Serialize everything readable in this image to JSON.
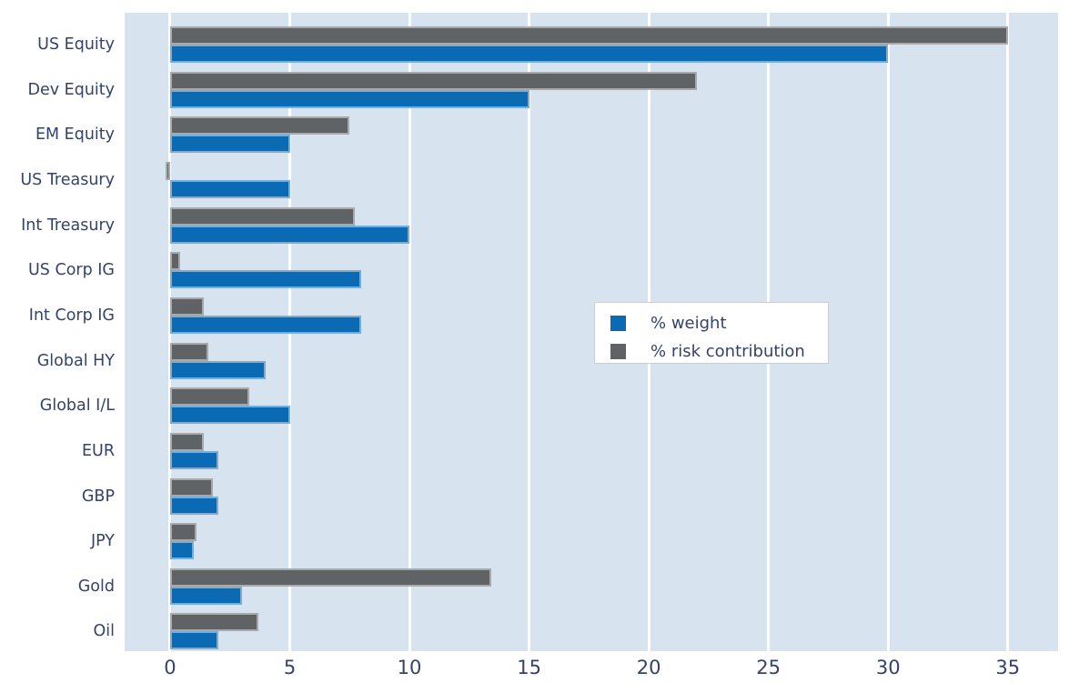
{
  "chart_data": {
    "type": "bar",
    "orientation": "horizontal",
    "title": "",
    "xlabel": "",
    "ylabel": "",
    "categories": [
      "US Equity",
      "Dev Equity",
      "EM Equity",
      "US Treasury",
      "Int Treasury",
      "US Corp IG",
      "Int Corp IG",
      "Global HY",
      "Global I/L",
      "EUR",
      "GBP",
      "JPY",
      "Gold",
      "Oil"
    ],
    "series": [
      {
        "name": "% weight",
        "color": "#0b6ab4",
        "values": [
          30,
          15,
          5,
          5,
          10,
          8,
          8,
          4,
          5,
          2,
          2,
          1,
          3,
          2
        ]
      },
      {
        "name": "% risk contribution",
        "color": "#5f6366",
        "values": [
          35,
          22,
          7.5,
          -0.2,
          7.7,
          0.4,
          1.4,
          1.6,
          3.3,
          1.4,
          1.8,
          1.1,
          13.4,
          3.7
        ]
      }
    ],
    "x_ticks": [
      0,
      5,
      10,
      15,
      20,
      25,
      30,
      35
    ],
    "xlim": [
      -1.9,
      37.1
    ],
    "grid": true,
    "gridline_color": "#ffffff",
    "plot_bg_color": "#d7e4f0",
    "figure_bg_color": "#ffffff",
    "text_color": "#33436b",
    "legend_position": "center-right"
  },
  "legend": {
    "items": [
      {
        "label": "% weight",
        "color": "#0b6ab4"
      },
      {
        "label": "% risk contribution",
        "color": "#5f6366"
      }
    ]
  }
}
